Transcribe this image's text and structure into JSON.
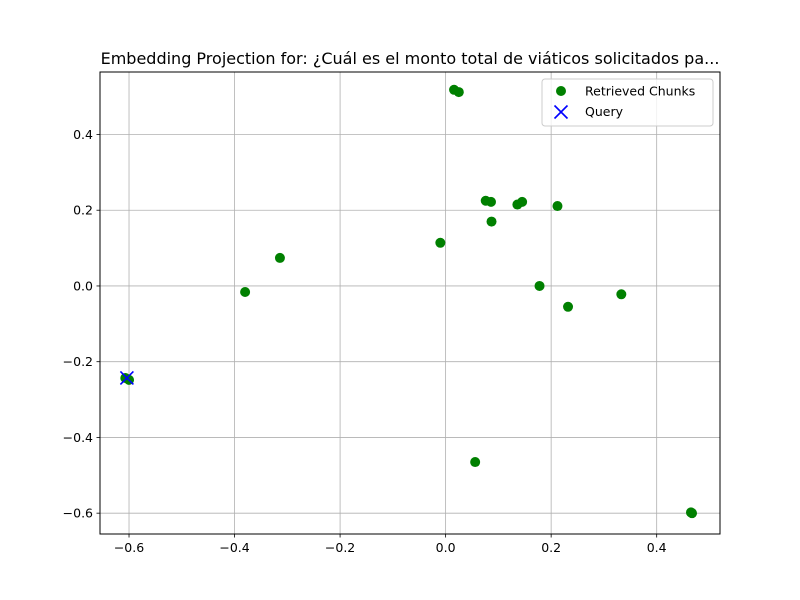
{
  "chart_data": {
    "type": "scatter",
    "title": "Embedding Projection for: ¿Cuál es el monto total de viáticos solicitados pa...",
    "xlabel": "",
    "ylabel": "",
    "xlim": [
      -0.655,
      0.52
    ],
    "ylim": [
      -0.655,
      0.565
    ],
    "grid": true,
    "legend_position": "top-right",
    "x_ticks": [
      -0.6,
      -0.4,
      -0.2,
      0.0,
      0.2,
      0.4
    ],
    "y_ticks": [
      -0.6,
      -0.4,
      -0.2,
      0.0,
      0.2,
      0.4
    ],
    "x_tick_labels": [
      "−0.6",
      "−0.4",
      "−0.2",
      "0.0",
      "0.2",
      "0.4"
    ],
    "y_tick_labels": [
      "−0.6",
      "−0.4",
      "−0.2",
      "0.0",
      "0.2",
      "0.4"
    ],
    "series": [
      {
        "name": "Retrieved Chunks",
        "marker": "circle",
        "color": "#008000",
        "points": [
          {
            "x": 0.016,
            "y": 0.518
          },
          {
            "x": 0.025,
            "y": 0.512
          },
          {
            "x": 0.076,
            "y": 0.225
          },
          {
            "x": 0.086,
            "y": 0.222
          },
          {
            "x": 0.136,
            "y": 0.215
          },
          {
            "x": 0.145,
            "y": 0.222
          },
          {
            "x": 0.212,
            "y": 0.211
          },
          {
            "x": 0.087,
            "y": 0.17
          },
          {
            "x": -0.01,
            "y": 0.114
          },
          {
            "x": -0.314,
            "y": 0.074
          },
          {
            "x": -0.38,
            "y": -0.016
          },
          {
            "x": 0.178,
            "y": 0.0
          },
          {
            "x": 0.333,
            "y": -0.022
          },
          {
            "x": 0.232,
            "y": -0.055
          },
          {
            "x": -0.6,
            "y": -0.248
          },
          {
            "x": -0.607,
            "y": -0.243
          },
          {
            "x": 0.056,
            "y": -0.465
          },
          {
            "x": 0.465,
            "y": -0.598
          },
          {
            "x": 0.467,
            "y": -0.6
          }
        ]
      },
      {
        "name": "Query",
        "marker": "x",
        "color": "#0000ff",
        "points": [
          {
            "x": -0.604,
            "y": -0.243
          }
        ]
      }
    ]
  }
}
